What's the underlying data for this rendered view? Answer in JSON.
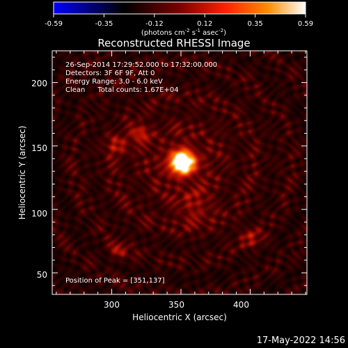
{
  "chart_data": {
    "type": "heatmap",
    "title": "Reconstructed RHESSI Image",
    "xlabel": "Heliocentric X (arcsec)",
    "ylabel": "Heliocentric Y (arcsec)",
    "xlim": [
      257,
      441
    ],
    "ylim": [
      33,
      225
    ],
    "x_ticks": [
      300,
      350,
      400
    ],
    "y_ticks": [
      50,
      100,
      150,
      200
    ],
    "colorbar": {
      "range": [
        -0.59,
        0.59
      ],
      "ticks": [
        "-0.59",
        "-0.35",
        "-0.12",
        "0.12",
        "0.35",
        "0.59"
      ],
      "unit_label": "(photons cm",
      "unit_exp1": "-2",
      "unit_mid": " s",
      "unit_exp2": "-1",
      "unit_mid2": " asec",
      "unit_exp3": "-2",
      "unit_end": ")",
      "colormap": [
        "#0000ff",
        "#000000",
        "#7a0000",
        "#ff2000",
        "#ff8c00",
        "#ffffff"
      ]
    },
    "annotations": {
      "time_range": "26-Sep-2014 17:29:52.000 to 17:32:00.000",
      "detectors": "Detectors: 3F 6F 9F, Att 0",
      "energy": "Energy Range: 3.0 - 6.0 keV",
      "method": "Clean",
      "counts": "Total counts: 1.67E+04",
      "peak": "Position of Peak = [351,137]"
    },
    "peak": {
      "x": 351,
      "y": 137,
      "value": 0.59
    },
    "footer_timestamp": "17-May-2022 14:56"
  }
}
